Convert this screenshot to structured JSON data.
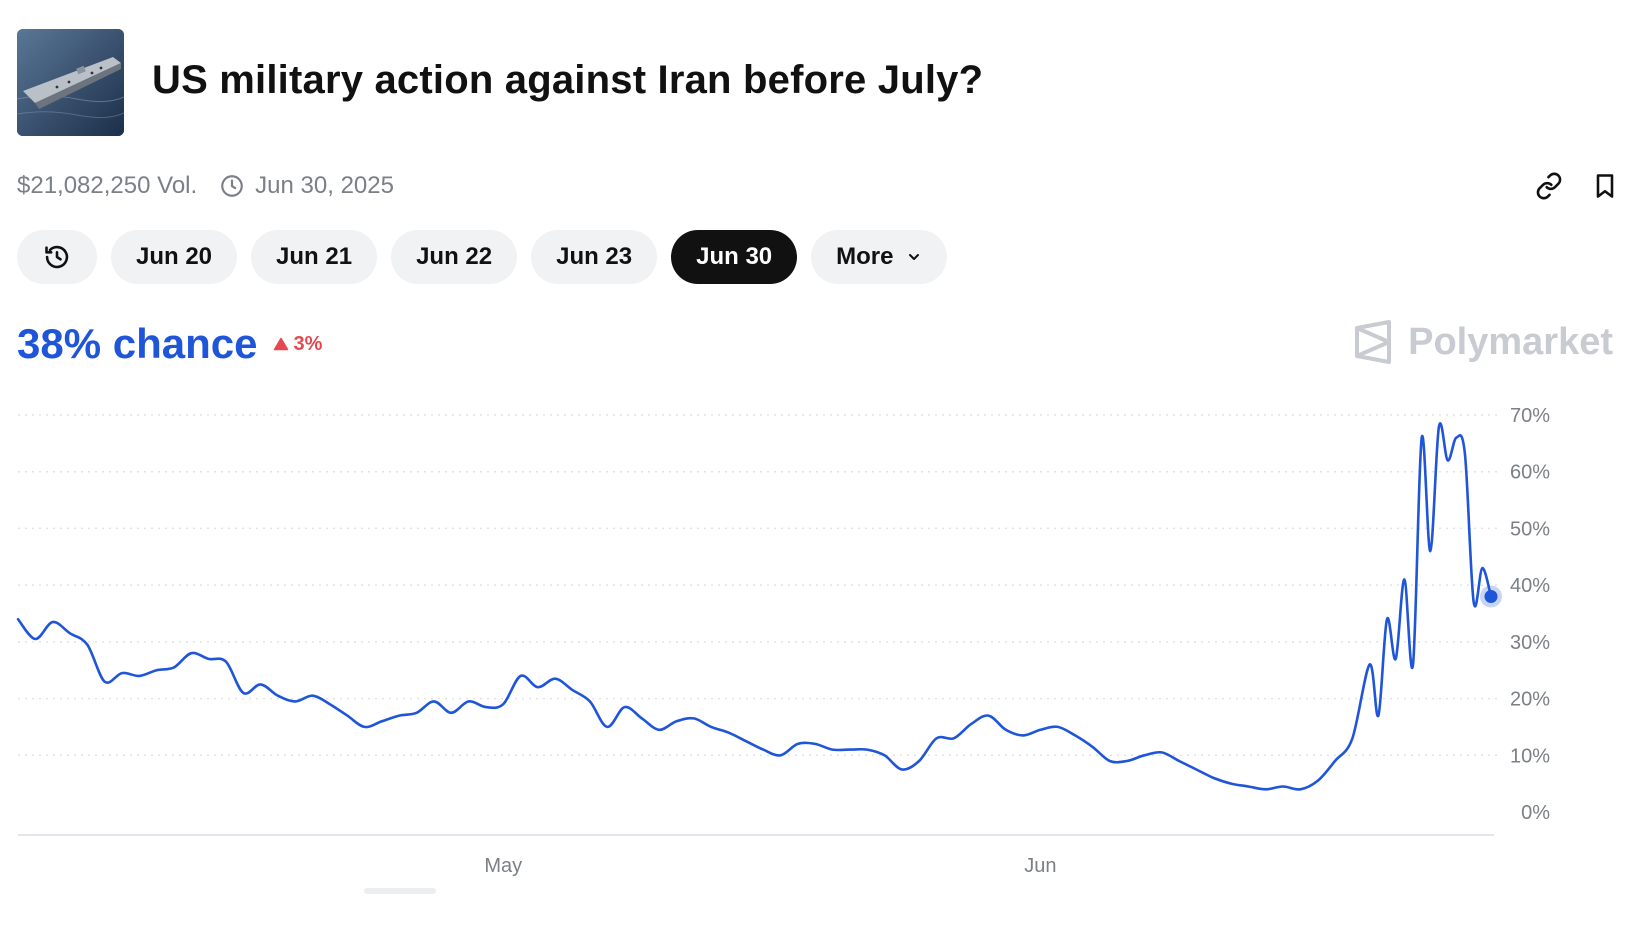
{
  "market": {
    "title": "US military action against Iran before July?",
    "volume": "$21,082,250 Vol.",
    "end_date": "Jun 30, 2025",
    "thumbnail_icon": "aircraft-carrier-photo"
  },
  "actions": {
    "link_icon": "link-icon",
    "bookmark_icon": "bookmark-icon"
  },
  "date_filters": {
    "history_icon": "history-icon",
    "items": [
      {
        "label": "Jun 20",
        "active": false
      },
      {
        "label": "Jun 21",
        "active": false
      },
      {
        "label": "Jun 22",
        "active": false
      },
      {
        "label": "Jun 23",
        "active": false
      },
      {
        "label": "Jun 30",
        "active": true
      }
    ],
    "more_label": "More"
  },
  "summary": {
    "chance_text": "38% chance",
    "change_text": "3%",
    "change_direction": "up"
  },
  "brand": {
    "name": "Polymarket"
  },
  "colors": {
    "accent": "#1f55d8",
    "up": "#e5484d",
    "text": "#111111",
    "muted": "#7b7f86",
    "watermark": "#c8ccd2"
  },
  "chart_data": {
    "type": "line",
    "y_unit": "%",
    "ylim": [
      0,
      70
    ],
    "y_ticks": [
      "0%",
      "10%",
      "20%",
      "30%",
      "40%",
      "50%",
      "60%",
      "70%"
    ],
    "x_ticks": [
      {
        "label": "May",
        "date": "2025-05-01"
      },
      {
        "label": "Jun",
        "date": "2025-06-01"
      }
    ],
    "grid": "horizontal dotted",
    "series": [
      {
        "color": "#1f55d8",
        "last_value": 38,
        "points": [
          [
            "2025-04-03",
            34
          ],
          [
            "2025-04-04",
            30.5
          ],
          [
            "2025-04-05",
            33.5
          ],
          [
            "2025-04-06",
            31.5
          ],
          [
            "2025-04-07",
            29.5
          ],
          [
            "2025-04-08",
            23
          ],
          [
            "2025-04-09",
            24.5
          ],
          [
            "2025-04-10",
            24
          ],
          [
            "2025-04-11",
            25
          ],
          [
            "2025-04-12",
            25.5
          ],
          [
            "2025-04-13",
            28
          ],
          [
            "2025-04-14",
            27
          ],
          [
            "2025-04-15",
            26.5
          ],
          [
            "2025-04-16",
            21
          ],
          [
            "2025-04-17",
            22.5
          ],
          [
            "2025-04-18",
            20.5
          ],
          [
            "2025-04-19",
            19.5
          ],
          [
            "2025-04-20",
            20.5
          ],
          [
            "2025-04-21",
            19
          ],
          [
            "2025-04-22",
            17
          ],
          [
            "2025-04-23",
            15
          ],
          [
            "2025-04-24",
            16
          ],
          [
            "2025-04-25",
            17
          ],
          [
            "2025-04-26",
            17.5
          ],
          [
            "2025-04-27",
            19.5
          ],
          [
            "2025-04-28",
            17.5
          ],
          [
            "2025-04-29",
            19.5
          ],
          [
            "2025-04-30",
            18.5
          ],
          [
            "2025-05-01",
            19
          ],
          [
            "2025-05-02",
            24
          ],
          [
            "2025-05-03",
            22
          ],
          [
            "2025-05-04",
            23.5
          ],
          [
            "2025-05-05",
            21.5
          ],
          [
            "2025-05-06",
            19.5
          ],
          [
            "2025-05-07",
            15
          ],
          [
            "2025-05-08",
            18.5
          ],
          [
            "2025-05-09",
            16.5
          ],
          [
            "2025-05-10",
            14.5
          ],
          [
            "2025-05-11",
            16
          ],
          [
            "2025-05-12",
            16.5
          ],
          [
            "2025-05-13",
            15
          ],
          [
            "2025-05-14",
            14
          ],
          [
            "2025-05-15",
            12.5
          ],
          [
            "2025-05-16",
            11
          ],
          [
            "2025-05-17",
            10
          ],
          [
            "2025-05-18",
            12
          ],
          [
            "2025-05-19",
            12
          ],
          [
            "2025-05-20",
            11
          ],
          [
            "2025-05-21",
            11
          ],
          [
            "2025-05-22",
            11
          ],
          [
            "2025-05-23",
            10
          ],
          [
            "2025-05-24",
            7.5
          ],
          [
            "2025-05-25",
            9
          ],
          [
            "2025-05-26",
            13
          ],
          [
            "2025-05-27",
            13
          ],
          [
            "2025-05-28",
            15.5
          ],
          [
            "2025-05-29",
            17
          ],
          [
            "2025-05-30",
            14.5
          ],
          [
            "2025-05-31",
            13.5
          ],
          [
            "2025-06-01",
            14.5
          ],
          [
            "2025-06-02",
            15
          ],
          [
            "2025-06-03",
            13.5
          ],
          [
            "2025-06-04",
            11.5
          ],
          [
            "2025-06-05",
            9
          ],
          [
            "2025-06-06",
            9
          ],
          [
            "2025-06-07",
            10
          ],
          [
            "2025-06-08",
            10.5
          ],
          [
            "2025-06-09",
            9
          ],
          [
            "2025-06-10",
            7.5
          ],
          [
            "2025-06-11",
            6
          ],
          [
            "2025-06-12",
            5
          ],
          [
            "2025-06-13",
            4.5
          ],
          [
            "2025-06-14",
            4
          ],
          [
            "2025-06-15",
            4.5
          ],
          [
            "2025-06-16",
            4
          ],
          [
            "2025-06-17",
            5.5
          ],
          [
            "2025-06-18",
            9
          ],
          [
            "2025-06-19",
            13
          ],
          [
            "2025-06-20",
            26
          ],
          [
            "2025-06-20T12:00",
            17
          ],
          [
            "2025-06-21",
            34
          ],
          [
            "2025-06-21T12:00",
            27
          ],
          [
            "2025-06-22",
            41
          ],
          [
            "2025-06-22T12:00",
            26
          ],
          [
            "2025-06-23",
            66
          ],
          [
            "2025-06-23T12:00",
            46
          ],
          [
            "2025-06-24",
            68
          ],
          [
            "2025-06-24T12:00",
            62
          ],
          [
            "2025-06-25",
            66
          ],
          [
            "2025-06-25T12:00",
            63
          ],
          [
            "2025-06-26",
            37
          ],
          [
            "2025-06-26T12:00",
            43
          ],
          [
            "2025-06-27",
            38
          ]
        ]
      }
    ]
  }
}
